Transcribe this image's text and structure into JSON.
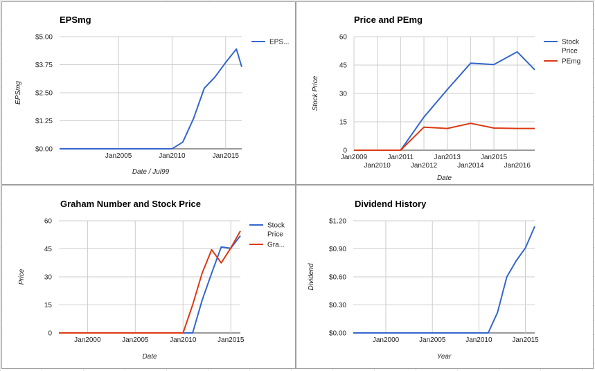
{
  "chart_data": [
    {
      "type": "line",
      "title": "EPSmg",
      "xlabel": "Date / Jul99",
      "ylabel": "EPSmg",
      "x_ticks": [
        {
          "label": "Jan2005",
          "value": 2005
        },
        {
          "label": "Jan2010",
          "value": 2010
        },
        {
          "label": "Jan2015",
          "value": 2015
        }
      ],
      "y_ticks": [
        "$0.00",
        "$1.25",
        "$2.50",
        "$3.75",
        "$5.00"
      ],
      "xlim": [
        1999.5,
        2016.5
      ],
      "ylim": [
        0,
        5
      ],
      "grid": true,
      "legend_position": "right",
      "series": [
        {
          "name": "EPS...",
          "color": "#3366cc",
          "x": [
            1999.5,
            2010,
            2011,
            2012,
            2013,
            2014,
            2015,
            2016,
            2016.5
          ],
          "y": [
            0,
            0,
            0.3,
            1.35,
            2.7,
            3.2,
            3.85,
            4.45,
            3.65
          ]
        }
      ]
    },
    {
      "type": "line",
      "title": "Price and PEmg",
      "xlabel": "Date",
      "ylabel": "Stock Price",
      "x_ticks": [
        {
          "label": "Jan2009",
          "value": 2009
        },
        {
          "label": "Jan2010",
          "value": 2010
        },
        {
          "label": "Jan2011",
          "value": 2011
        },
        {
          "label": "Jan2012",
          "value": 2012
        },
        {
          "label": "Jan2013",
          "value": 2013
        },
        {
          "label": "Jan2014",
          "value": 2014
        },
        {
          "label": "Jan2015",
          "value": 2015
        },
        {
          "label": "Jan2016",
          "value": 2016
        }
      ],
      "y_ticks": [
        "0",
        "15",
        "30",
        "45",
        "60"
      ],
      "xlim": [
        2009,
        2016.75
      ],
      "ylim": [
        0,
        60
      ],
      "grid": true,
      "legend_position": "right",
      "series": [
        {
          "name": "Stock Price",
          "color": "#3366cc",
          "x": [
            2009,
            2011,
            2012,
            2013,
            2014,
            2015,
            2016,
            2016.75
          ],
          "y": [
            0,
            0,
            17.5,
            32,
            46,
            45.3,
            52,
            42.5
          ]
        },
        {
          "name": "PEmg",
          "color": "#dc3912",
          "x": [
            2009,
            2011,
            2012,
            2013,
            2014,
            2015,
            2016,
            2016.75
          ],
          "y": [
            0,
            0,
            12.2,
            11.5,
            14.2,
            11.7,
            11.5,
            11.5
          ]
        }
      ]
    },
    {
      "type": "line",
      "title": "Graham Number and Stock Price",
      "xlabel": "Date",
      "ylabel": "Price",
      "x_ticks": [
        {
          "label": "Jan2000",
          "value": 2000
        },
        {
          "label": "Jan2005",
          "value": 2005
        },
        {
          "label": "Jan2010",
          "value": 2010
        },
        {
          "label": "Jan2015",
          "value": 2015
        }
      ],
      "y_ticks": [
        "0",
        "15",
        "30",
        "45",
        "60"
      ],
      "xlim": [
        1997,
        2016
      ],
      "ylim": [
        0,
        60
      ],
      "grid": true,
      "legend_position": "right",
      "series": [
        {
          "name": "Stock Price",
          "color": "#3366cc",
          "x": [
            1997,
            2011,
            2012,
            2013,
            2014,
            2015,
            2016
          ],
          "y": [
            0,
            0,
            17.5,
            32,
            46,
            45.3,
            52
          ]
        },
        {
          "name": "Gra...",
          "color": "#dc3912",
          "x": [
            1997,
            2010,
            2011,
            2012,
            2013,
            2014,
            2015,
            2016
          ],
          "y": [
            0,
            0,
            15,
            32,
            44.5,
            37.5,
            45.5,
            54.5
          ]
        }
      ]
    },
    {
      "type": "line",
      "title": "Dividend History",
      "xlabel": "Year",
      "ylabel": "Dividend",
      "x_ticks": [
        {
          "label": "Jan2000",
          "value": 2000
        },
        {
          "label": "Jan2005",
          "value": 2005
        },
        {
          "label": "Jan2010",
          "value": 2010
        },
        {
          "label": "Jan2015",
          "value": 2015
        }
      ],
      "y_ticks": [
        "$0.00",
        "$0.30",
        "$0.60",
        "$0.90",
        "$1.20"
      ],
      "xlim": [
        1996.5,
        2016
      ],
      "ylim": [
        0,
        1.2
      ],
      "grid": true,
      "legend_position": "none",
      "series": [
        {
          "name": "",
          "color": "#3366cc",
          "x": [
            1996.5,
            2011,
            2012,
            2013,
            2014,
            2015,
            2016
          ],
          "y": [
            0,
            0,
            0.22,
            0.6,
            0.77,
            0.91,
            1.14
          ]
        }
      ]
    }
  ]
}
